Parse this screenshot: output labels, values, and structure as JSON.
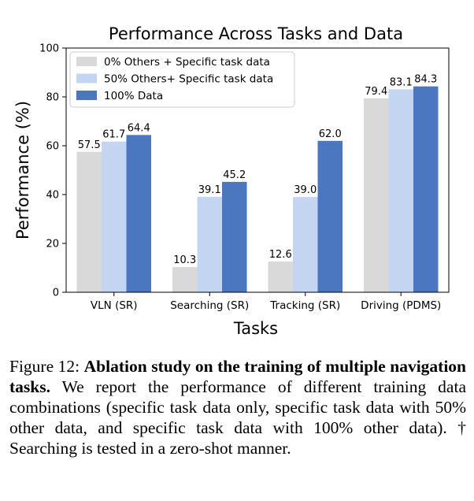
{
  "chart_data": {
    "type": "bar",
    "title": "Performance Across Tasks and Data",
    "xlabel": "Tasks",
    "ylabel": "Performance (%)",
    "ylim": [
      0,
      100
    ],
    "yticks": [
      "0",
      "20",
      "40",
      "60",
      "80",
      "100"
    ],
    "categories": [
      "VLN (SR)",
      "Searching (SR)",
      "Tracking (SR)",
      "Driving (PDMS)"
    ],
    "legend_position": "top-left",
    "series": [
      {
        "name": "0% Others + Specific task data",
        "color": "#d9d9d9",
        "values": [
          57.5,
          10.3,
          12.6,
          79.4
        ],
        "labels": [
          "57.5",
          "10.3",
          "12.6",
          "79.4"
        ]
      },
      {
        "name": "50% Others+ Specific task data",
        "color": "#c3d5f0",
        "values": [
          61.7,
          39.1,
          39.0,
          83.1
        ],
        "labels": [
          "61.7",
          "39.1",
          "39.0",
          "83.1"
        ]
      },
      {
        "name": "100% Data",
        "color": "#4b76c0",
        "values": [
          64.4,
          45.2,
          62.0,
          84.3
        ],
        "labels": [
          "64.4",
          "45.2",
          "62.0",
          "84.3"
        ]
      }
    ]
  },
  "caption": {
    "label": "Figure 12:",
    "title": "Ablation study on the training of multiple navigation tasks.",
    "body": "We report the performance of different training data combinations (specific task data only, specific task data with 50% other data, and specific task data with 100% other data). † Searching is tested in a zero-shot manner."
  }
}
